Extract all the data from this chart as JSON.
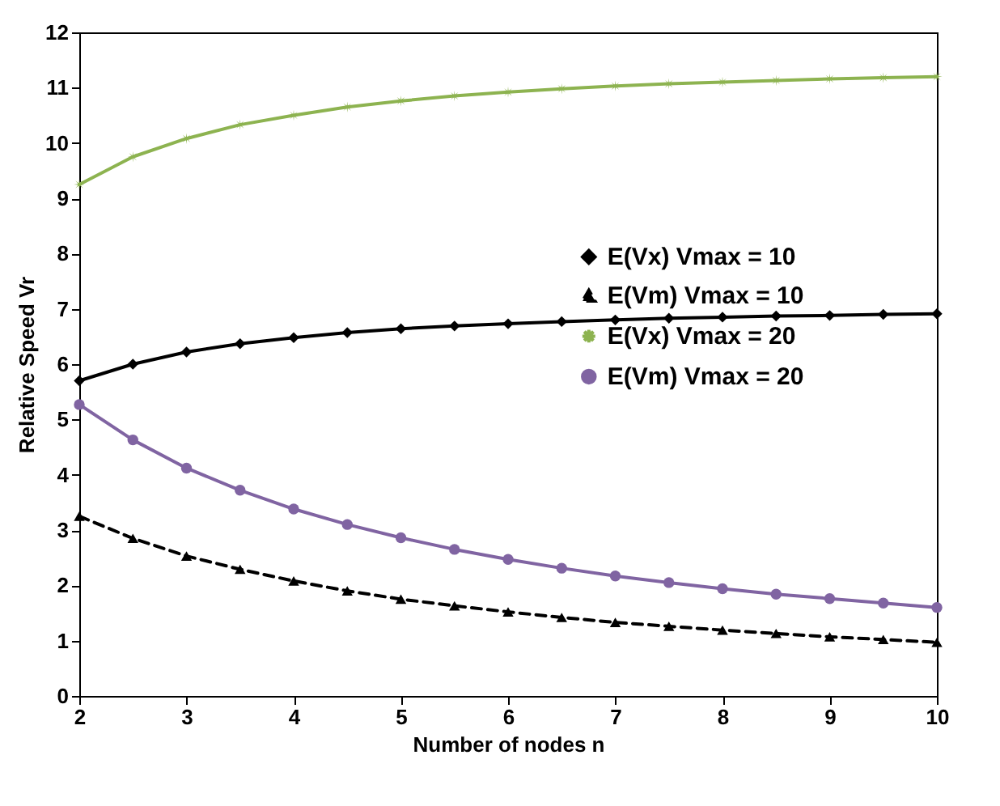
{
  "chart_data": {
    "type": "line",
    "xlabel": "Number of nodes n",
    "ylabel": "Relative Speed Vr",
    "x": [
      2,
      2.5,
      3,
      3.5,
      4,
      4.5,
      5,
      5.5,
      6,
      6.5,
      7,
      7.5,
      8,
      8.5,
      9,
      9.5,
      10
    ],
    "xlim": [
      2,
      10
    ],
    "xticks": [
      2,
      3,
      4,
      5,
      6,
      7,
      8,
      9,
      10
    ],
    "ylim": [
      0,
      12
    ],
    "yticks": [
      0,
      1,
      2,
      3,
      4,
      5,
      6,
      7,
      8,
      9,
      10,
      11,
      12
    ],
    "grid": false,
    "legend": "right",
    "series": [
      {
        "name": "E(Vx)  Vmax = 10",
        "color": "#000000",
        "marker": "diamond",
        "line_style": "solid",
        "values": [
          5.7,
          6.0,
          6.22,
          6.37,
          6.48,
          6.57,
          6.64,
          6.69,
          6.73,
          6.77,
          6.8,
          6.83,
          6.85,
          6.87,
          6.88,
          6.9,
          6.91
        ]
      },
      {
        "name": "E(Vm)  Vmax = 10",
        "color": "#000000",
        "marker": "triangle",
        "line_style": "dashed",
        "values": [
          3.25,
          2.85,
          2.53,
          2.29,
          2.08,
          1.9,
          1.75,
          1.63,
          1.52,
          1.42,
          1.33,
          1.26,
          1.19,
          1.13,
          1.07,
          1.02,
          0.97
        ]
      },
      {
        "name": "E(Vx)  Vmax = 20",
        "color": "#8db350",
        "marker": "star",
        "line_style": "solid",
        "values": [
          9.25,
          9.75,
          10.08,
          10.33,
          10.5,
          10.65,
          10.76,
          10.85,
          10.92,
          10.98,
          11.03,
          11.07,
          11.1,
          11.13,
          11.16,
          11.18,
          11.2
        ]
      },
      {
        "name": "E(Vm)  Vmax = 20",
        "color": "#8064a2",
        "marker": "circle",
        "line_style": "solid",
        "values": [
          5.27,
          4.63,
          4.12,
          3.72,
          3.38,
          3.1,
          2.86,
          2.65,
          2.47,
          2.31,
          2.17,
          2.05,
          1.94,
          1.84,
          1.76,
          1.68,
          1.6
        ]
      }
    ]
  }
}
